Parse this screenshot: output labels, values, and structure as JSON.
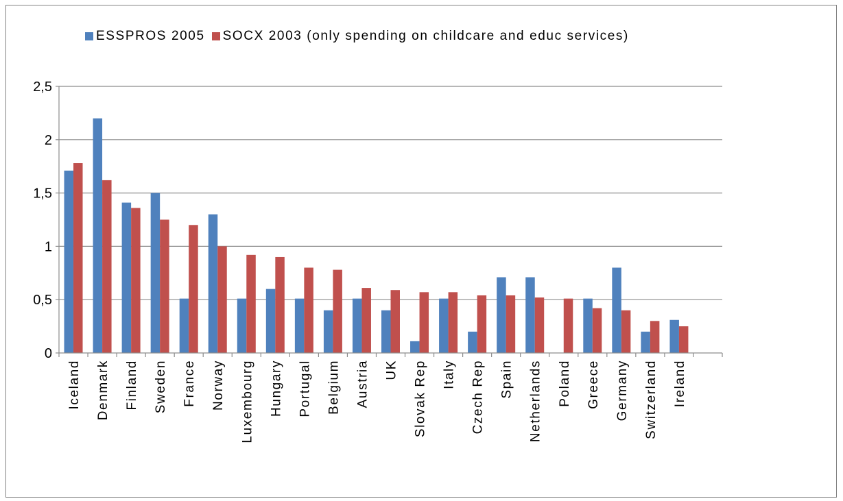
{
  "chart_data": {
    "type": "bar",
    "title": "",
    "xlabel": "",
    "ylabel": "",
    "ylim": [
      0,
      2.5
    ],
    "yticks": [
      "0",
      "0,5",
      "1",
      "1,5",
      "2",
      "2,5"
    ],
    "grid": true,
    "legend_position": "top",
    "categories": [
      "Iceland",
      "Denmark",
      "Finland",
      "Sweden",
      "France",
      "Norway",
      "Luxembourg",
      "Hungary",
      "Portugal",
      "Belgium",
      "Austria",
      "UK",
      "Slovak Rep",
      "Italy",
      "Czech Rep",
      "Spain",
      "Netherlands",
      "Poland",
      "Greece",
      "Germany",
      "Switzerland",
      "Ireland",
      ""
    ],
    "series": [
      {
        "name": "ESSPROS 2005",
        "color": "#4F81BD",
        "values": [
          1.71,
          2.2,
          1.41,
          1.5,
          0.51,
          1.3,
          0.51,
          0.6,
          0.51,
          0.4,
          0.51,
          0.4,
          0.11,
          0.51,
          0.2,
          0.71,
          0.71,
          0.0,
          0.51,
          0.8,
          0.2,
          0.31,
          null
        ]
      },
      {
        "name": "SOCX 2003 (only spending on childcare and educ services)",
        "color": "#C0504D",
        "values": [
          1.78,
          1.62,
          1.36,
          1.25,
          1.2,
          1.0,
          0.92,
          0.9,
          0.8,
          0.78,
          0.61,
          0.59,
          0.57,
          0.57,
          0.54,
          0.54,
          0.52,
          0.51,
          0.42,
          0.4,
          0.3,
          0.25,
          null
        ]
      }
    ]
  }
}
